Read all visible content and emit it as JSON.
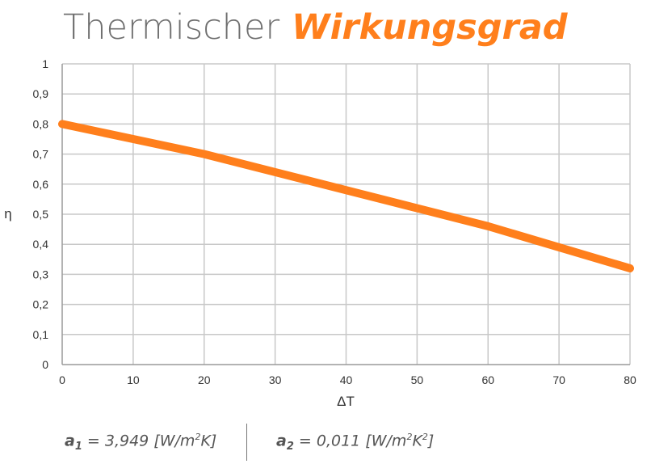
{
  "title": {
    "light": "Thermischer",
    "accent": "Wirkungsgrad"
  },
  "formula": {
    "a1": {
      "symbol": "a",
      "index": "1",
      "equals": " = ",
      "value": "3,949",
      "unit_pre": " [W/m",
      "unit_sup": "2",
      "unit_post": "K]"
    },
    "a2": {
      "symbol": "a",
      "index": "2",
      "equals": " = ",
      "value": "0,011",
      "unit_pre": " [W/m",
      "unit_sup": "2",
      "unit_mid": "K",
      "unit_sup2": "2",
      "unit_post": "]"
    }
  },
  "colors": {
    "series": "#ff7f1c",
    "grid": "#c8c8c8",
    "axis": "#9a9a9a"
  },
  "chart_data": {
    "type": "line",
    "title": "Thermischer Wirkungsgrad",
    "xlabel": "ΔT",
    "ylabel": "η",
    "xlim": [
      0,
      80
    ],
    "ylim": [
      0,
      1
    ],
    "x_ticks": [
      0,
      10,
      20,
      30,
      40,
      50,
      60,
      70,
      80
    ],
    "x_tick_labels": [
      "0",
      "10",
      "20",
      "30",
      "40",
      "50",
      "60",
      "70",
      "80"
    ],
    "y_ticks": [
      0,
      0.1,
      0.2,
      0.3,
      0.4,
      0.5,
      0.6,
      0.7,
      0.8,
      0.9,
      1
    ],
    "y_tick_labels": [
      "0",
      "0,1",
      "0,2",
      "0,3",
      "0,4",
      "0,5",
      "0,6",
      "0,7",
      "0,8",
      "0,9",
      "1"
    ],
    "grid": true,
    "legend": "none",
    "series": [
      {
        "x": [
          0,
          10,
          20,
          30,
          40,
          50,
          60,
          70,
          80
        ],
        "y": [
          0.8,
          0.75,
          0.7,
          0.64,
          0.58,
          0.52,
          0.46,
          0.39,
          0.32
        ]
      }
    ]
  }
}
